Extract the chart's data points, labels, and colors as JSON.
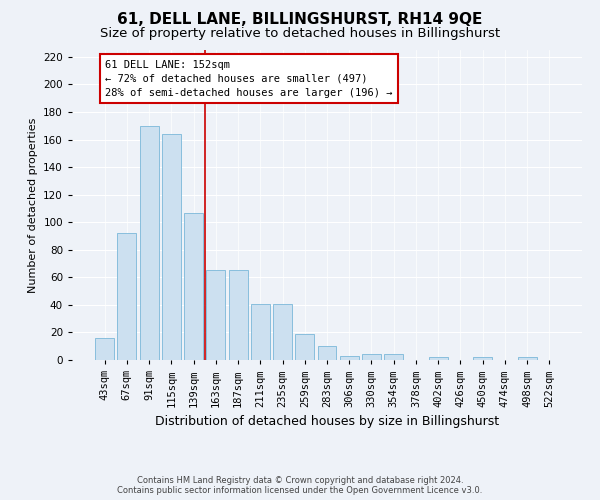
{
  "title": "61, DELL LANE, BILLINGSHURST, RH14 9QE",
  "subtitle": "Size of property relative to detached houses in Billingshurst",
  "xlabel": "Distribution of detached houses by size in Billingshurst",
  "ylabel": "Number of detached properties",
  "bar_labels": [
    "43sqm",
    "67sqm",
    "91sqm",
    "115sqm",
    "139sqm",
    "163sqm",
    "187sqm",
    "211sqm",
    "235sqm",
    "259sqm",
    "283sqm",
    "306sqm",
    "330sqm",
    "354sqm",
    "378sqm",
    "402sqm",
    "426sqm",
    "450sqm",
    "474sqm",
    "498sqm",
    "522sqm"
  ],
  "bar_values": [
    16,
    92,
    170,
    164,
    107,
    65,
    65,
    41,
    41,
    19,
    10,
    3,
    4,
    4,
    0,
    2,
    0,
    2,
    0,
    2,
    0
  ],
  "bar_color": "#cce0f0",
  "bar_edgecolor": "#7ab8d9",
  "vline_color": "#cc0000",
  "vline_pos": 4.5,
  "annotation_text": "61 DELL LANE: 152sqm\n← 72% of detached houses are smaller (497)\n28% of semi-detached houses are larger (196) →",
  "annotation_box_facecolor": "#ffffff",
  "annotation_box_edgecolor": "#cc0000",
  "ylim": [
    0,
    225
  ],
  "yticks": [
    0,
    20,
    40,
    60,
    80,
    100,
    120,
    140,
    160,
    180,
    200,
    220
  ],
  "bg_color": "#eef2f8",
  "grid_color": "#ffffff",
  "footer_text": "Contains HM Land Registry data © Crown copyright and database right 2024.\nContains public sector information licensed under the Open Government Licence v3.0.",
  "title_fontsize": 11,
  "subtitle_fontsize": 9.5,
  "xlabel_fontsize": 9,
  "ylabel_fontsize": 8,
  "tick_fontsize": 7.5,
  "annotation_fontsize": 7.5,
  "footer_fontsize": 6
}
